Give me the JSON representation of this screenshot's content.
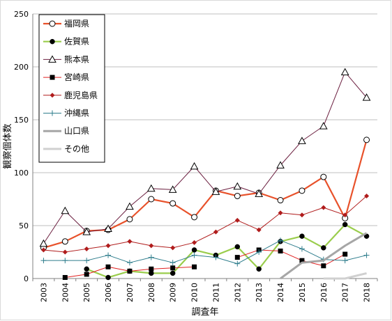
{
  "chart_data": {
    "type": "line",
    "title": "",
    "xlabel": "調査年",
    "ylabel": "観察個体数",
    "ylim": [
      0,
      250
    ],
    "yticks": [
      0,
      50,
      100,
      150,
      200,
      250
    ],
    "grid": true,
    "legend_position": "top-left",
    "categories": [
      "2003",
      "2004",
      "2005",
      "2006",
      "2007",
      "2008",
      "2009",
      "2010",
      "2011",
      "2012",
      "2013",
      "2014",
      "2015",
      "2016",
      "2017",
      "2018"
    ],
    "series": [
      {
        "name": "福岡県",
        "color": "#e8512a",
        "marker": "circle-open",
        "values": [
          29,
          35,
          45,
          46,
          56,
          75,
          71,
          58,
          83,
          78,
          81,
          74,
          83,
          96,
          57,
          131
        ]
      },
      {
        "name": "佐賀県",
        "color": "#9acd4c",
        "marker": "circle-filled",
        "values": [
          null,
          null,
          9,
          1,
          7,
          5,
          5,
          27,
          22,
          30,
          9,
          35,
          40,
          29,
          51,
          40
        ]
      },
      {
        "name": "熊本県",
        "color": "#6b1e3f",
        "marker": "triangle-open",
        "values": [
          33,
          64,
          44,
          47,
          68,
          85,
          84,
          106,
          82,
          87,
          80,
          107,
          130,
          144,
          195,
          171
        ]
      },
      {
        "name": "宮崎県",
        "color": "#e02020",
        "marker": "square-filled",
        "values": [
          null,
          1,
          4,
          11,
          7,
          9,
          10,
          11,
          null,
          20,
          27,
          26,
          17,
          12,
          23,
          null
        ]
      },
      {
        "name": "鹿児島県",
        "color": "#b01c1c",
        "marker": "diamond-filled",
        "values": [
          27,
          25,
          28,
          31,
          35,
          31,
          29,
          34,
          44,
          55,
          46,
          62,
          60,
          67,
          60,
          78
        ]
      },
      {
        "name": "沖縄県",
        "color": "#2e7d8c",
        "marker": "plus",
        "values": [
          17,
          17,
          17,
          22,
          15,
          20,
          15,
          22,
          20,
          14,
          25,
          36,
          28,
          18,
          17,
          22
        ]
      },
      {
        "name": "山口県",
        "color": "#a6a6a6",
        "marker": "none",
        "values": [
          null,
          null,
          null,
          null,
          null,
          null,
          null,
          null,
          null,
          null,
          null,
          0,
          15,
          17,
          31,
          43
        ]
      },
      {
        "name": "その他",
        "color": "#d0d0d0",
        "marker": "none",
        "values": [
          null,
          null,
          null,
          null,
          null,
          null,
          null,
          null,
          null,
          null,
          null,
          null,
          null,
          0,
          0,
          5
        ]
      }
    ]
  }
}
